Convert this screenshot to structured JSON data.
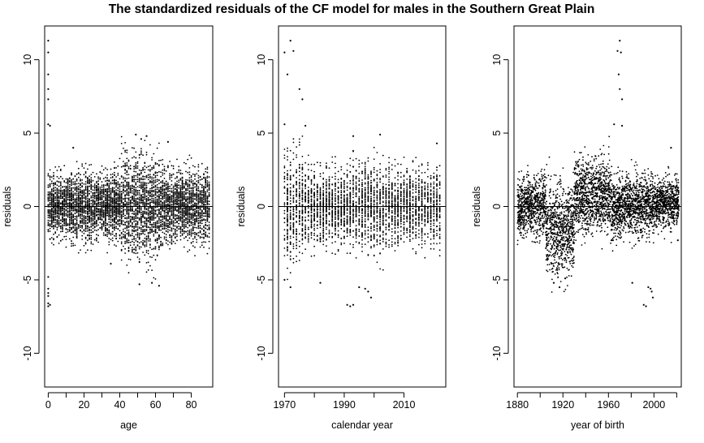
{
  "chart_data": {
    "title": "The standardized residuals of the CF model for males in the Southern Great Plain",
    "panels": [
      {
        "type": "scatter",
        "xlabel": "age",
        "ylabel": "residuals",
        "xlim": [
          -2,
          92
        ],
        "ylim": [
          -12.3,
          12.3
        ],
        "xticks": [
          0,
          20,
          40,
          60,
          80
        ],
        "yticks": [
          -10,
          -5,
          0,
          5,
          10
        ],
        "reference_line_y": 0,
        "grid": false,
        "x_domain": [
          0,
          90
        ],
        "cloud": [
          {
            "x0": 0,
            "x1": 40,
            "sd": 1.05,
            "max_abs": 3.2
          },
          {
            "x0": 40,
            "x1": 63,
            "sd": 1.6,
            "max_abs": 5.2
          },
          {
            "x0": 63,
            "x1": 90,
            "sd": 1.15,
            "max_abs": 3.5
          }
        ],
        "outliers": [
          {
            "x": 0,
            "y": 11.3
          },
          {
            "x": 0,
            "y": 10.5
          },
          {
            "x": 0,
            "y": 9.0
          },
          {
            "x": 0,
            "y": 8.0
          },
          {
            "x": 0,
            "y": 7.3
          },
          {
            "x": 0,
            "y": 5.6
          },
          {
            "x": 1,
            "y": 5.5
          },
          {
            "x": 0,
            "y": -5.6
          },
          {
            "x": 0,
            "y": -5.9
          },
          {
            "x": 0,
            "y": -6.1
          },
          {
            "x": 0,
            "y": -6.6
          },
          {
            "x": 0,
            "y": -6.8
          },
          {
            "x": 1,
            "y": -6.7
          },
          {
            "x": 0,
            "y": -4.8
          },
          {
            "x": 49,
            "y": 4.9
          },
          {
            "x": 52,
            "y": 4.6
          },
          {
            "x": 55,
            "y": 4.8
          },
          {
            "x": 51,
            "y": -5.3
          },
          {
            "x": 58,
            "y": -5.2
          },
          {
            "x": 62,
            "y": -5.4
          },
          {
            "x": 67,
            "y": 4.4
          },
          {
            "x": 14,
            "y": 4.0
          },
          {
            "x": 35,
            "y": -3.9
          }
        ]
      },
      {
        "type": "scatter",
        "xlabel": "calendar year",
        "ylabel": "residuals",
        "xlim": [
          1968,
          2024
        ],
        "ylim": [
          -12.3,
          12.3
        ],
        "xticks": [
          1970,
          1990,
          2010
        ],
        "yticks": [
          -10,
          -5,
          0,
          5,
          10
        ],
        "reference_line_y": 0,
        "grid": false,
        "x_domain": [
          1970,
          2022
        ],
        "cloud": [
          {
            "x0": 1970,
            "x1": 1976,
            "sd": 1.9,
            "max_abs": 5.0
          },
          {
            "x0": 1976,
            "x1": 1992,
            "sd": 1.2,
            "max_abs": 3.5
          },
          {
            "x0": 1992,
            "x1": 2004,
            "sd": 1.4,
            "max_abs": 4.5
          },
          {
            "x0": 2004,
            "x1": 2022,
            "sd": 1.2,
            "max_abs": 3.6
          }
        ],
        "outliers": [
          {
            "x": 1972,
            "y": 11.3
          },
          {
            "x": 1970,
            "y": 10.5
          },
          {
            "x": 1973,
            "y": 10.6
          },
          {
            "x": 1971,
            "y": 9.0
          },
          {
            "x": 1975,
            "y": 8.0
          },
          {
            "x": 1976,
            "y": 7.3
          },
          {
            "x": 1970,
            "y": 5.6
          },
          {
            "x": 1977,
            "y": 5.5
          },
          {
            "x": 1972,
            "y": -5.5
          },
          {
            "x": 1970,
            "y": -5.0
          },
          {
            "x": 1982,
            "y": -5.2
          },
          {
            "x": 1991,
            "y": -6.7
          },
          {
            "x": 1992,
            "y": -6.8
          },
          {
            "x": 1993,
            "y": -6.7
          },
          {
            "x": 1995,
            "y": -5.5
          },
          {
            "x": 1997,
            "y": -5.6
          },
          {
            "x": 1998,
            "y": -5.8
          },
          {
            "x": 1999,
            "y": -6.2
          },
          {
            "x": 1993,
            "y": 4.8
          },
          {
            "x": 2002,
            "y": 4.9
          },
          {
            "x": 2021,
            "y": 4.3
          }
        ]
      },
      {
        "type": "scatter",
        "xlabel": "year of birth",
        "ylabel": "residuals",
        "xlim": [
          1877,
          2024
        ],
        "ylim": [
          -12.3,
          12.3
        ],
        "xticks": [
          1880,
          1920,
          1960,
          2000
        ],
        "yticks": [
          -10,
          -5,
          0,
          5,
          10
        ],
        "reference_line_y": 0,
        "grid": false,
        "x_domain": [
          1880,
          2022
        ],
        "cloud": [
          {
            "x0": 1880,
            "x1": 1905,
            "sd": 1.0,
            "max_abs": 3.0
          },
          {
            "x0": 1905,
            "x1": 1930,
            "sd": 1.5,
            "mean": -1.6,
            "max_abs": 5.0
          },
          {
            "x0": 1930,
            "x1": 1962,
            "sd": 1.2,
            "mean": 0.8,
            "max_abs": 4.6
          },
          {
            "x0": 1962,
            "x1": 2000,
            "sd": 1.0,
            "mean": 0.0,
            "max_abs": 3.2
          },
          {
            "x0": 2000,
            "x1": 2022,
            "sd": 0.8,
            "mean": 0.2,
            "max_abs": 3.0
          }
        ],
        "outliers": [
          {
            "x": 1970,
            "y": 11.3
          },
          {
            "x": 1968,
            "y": 10.6
          },
          {
            "x": 1971,
            "y": 10.5
          },
          {
            "x": 1969,
            "y": 9.0
          },
          {
            "x": 1970,
            "y": 8.0
          },
          {
            "x": 1972,
            "y": 7.3
          },
          {
            "x": 1965,
            "y": 5.6
          },
          {
            "x": 1972,
            "y": 5.5
          },
          {
            "x": 1912,
            "y": -5.2
          },
          {
            "x": 1917,
            "y": -5.5
          },
          {
            "x": 1922,
            "y": -4.9
          },
          {
            "x": 1981,
            "y": -5.2
          },
          {
            "x": 1991,
            "y": -6.7
          },
          {
            "x": 1993,
            "y": -6.8
          },
          {
            "x": 1995,
            "y": -5.5
          },
          {
            "x": 1997,
            "y": -5.6
          },
          {
            "x": 1998,
            "y": -5.8
          },
          {
            "x": 1999,
            "y": -6.2
          },
          {
            "x": 2015,
            "y": 4.0
          },
          {
            "x": 2021,
            "y": -2.3
          }
        ]
      }
    ]
  }
}
